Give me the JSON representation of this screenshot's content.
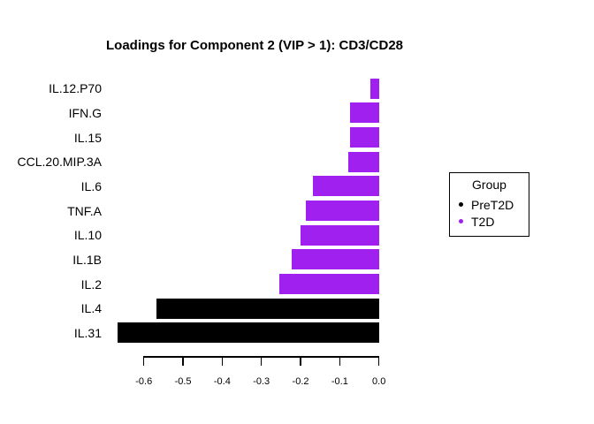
{
  "title": "Loadings for Component 2 (VIP > 1): CD3/CD28",
  "legend": {
    "title": "Group",
    "items": [
      {
        "label": "PreT2D",
        "color": "#000000"
      },
      {
        "label": "T2D",
        "color": "#A020F0"
      }
    ]
  },
  "chart_data": {
    "type": "bar",
    "orientation": "horizontal",
    "title": "Loadings for Component 2 (VIP > 1): CD3/CD28",
    "categories": [
      "IL.12.P70",
      "IFN.G",
      "IL.15",
      "CCL.20.MIP.3A",
      "IL.6",
      "TNF.A",
      "IL.10",
      "IL.1B",
      "IL.2",
      "IL.4",
      "IL.31"
    ],
    "values": [
      -0.022,
      -0.073,
      -0.074,
      -0.078,
      -0.169,
      -0.186,
      -0.2,
      -0.222,
      -0.254,
      -0.568,
      -0.666
    ],
    "groups": [
      "T2D",
      "T2D",
      "T2D",
      "T2D",
      "T2D",
      "T2D",
      "T2D",
      "T2D",
      "T2D",
      "PreT2D",
      "PreT2D"
    ],
    "group_colors": {
      "PreT2D": "#000000",
      "T2D": "#A020F0"
    },
    "xlabel": "",
    "ylabel": "",
    "xlim": [
      -0.7,
      0
    ],
    "x_ticks": [
      -0.6,
      -0.5,
      -0.4,
      -0.3,
      -0.2,
      -0.1,
      0
    ],
    "x_tick_labels": [
      "-0.6",
      "-0.5",
      "-0.4",
      "-0.3",
      "-0.2",
      "-0.1",
      "0.0"
    ],
    "grid": false,
    "legend_position": "right"
  }
}
